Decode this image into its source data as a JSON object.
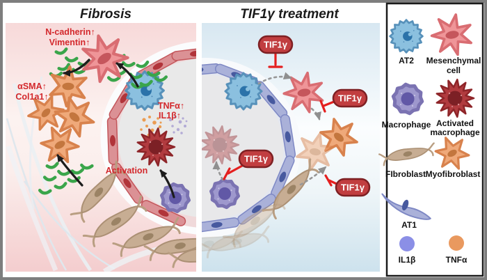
{
  "panels": {
    "fibrosis": {
      "title": "Fibrosis",
      "labels": {
        "n_cadherin": "N-cadherin↑",
        "vimentin": "Vimentin↑",
        "asma": "αSMA↑",
        "col1a1": "Col1a1↑",
        "tnfa": "TNFα↑",
        "il1b": "IL1β↑",
        "activation": "Activation"
      }
    },
    "treatment": {
      "title": "TIF1γ treatment",
      "badge_label": "TIF1γ"
    }
  },
  "legend": {
    "at2": "AT2",
    "mesenchymal_1": "Mesenchymal",
    "mesenchymal_2": "cell",
    "macrophage": "Macrophage",
    "activated_1": "Activated",
    "activated_2": "macrophage",
    "fibroblast": "FIbroblast",
    "myofibroblast": "Myofibroblast",
    "at1": "AT1",
    "il1b": "IL1β",
    "tnfa": "TNFα"
  },
  "colors": {
    "red_label": "#d3282c",
    "badge_fill": "#c13e40",
    "badge_border": "#7e2023",
    "inhibit_red": "#e41f1f",
    "collagen_green": "#3aa54a",
    "fibrosis_panel_pink": "#f6d6d7",
    "treatment_panel_blue": "#d6e7f1",
    "alveolus_interior": "#e9e9e9",
    "at1_left_fill": "#db9195",
    "at1_right_fill": "#aab1d9",
    "at2_fill": "#8bc0df",
    "mesenchymal_fill": "#ef9598",
    "macrophage_fill": "#9e98cd",
    "activated_macrophage_fill": "#b13b3f",
    "fibroblast_fill": "#c7ad93",
    "myofibroblast_fill": "#efa97a",
    "il1b_dot": "#8b8fe6",
    "tnfa_dot": "#e9995f"
  }
}
